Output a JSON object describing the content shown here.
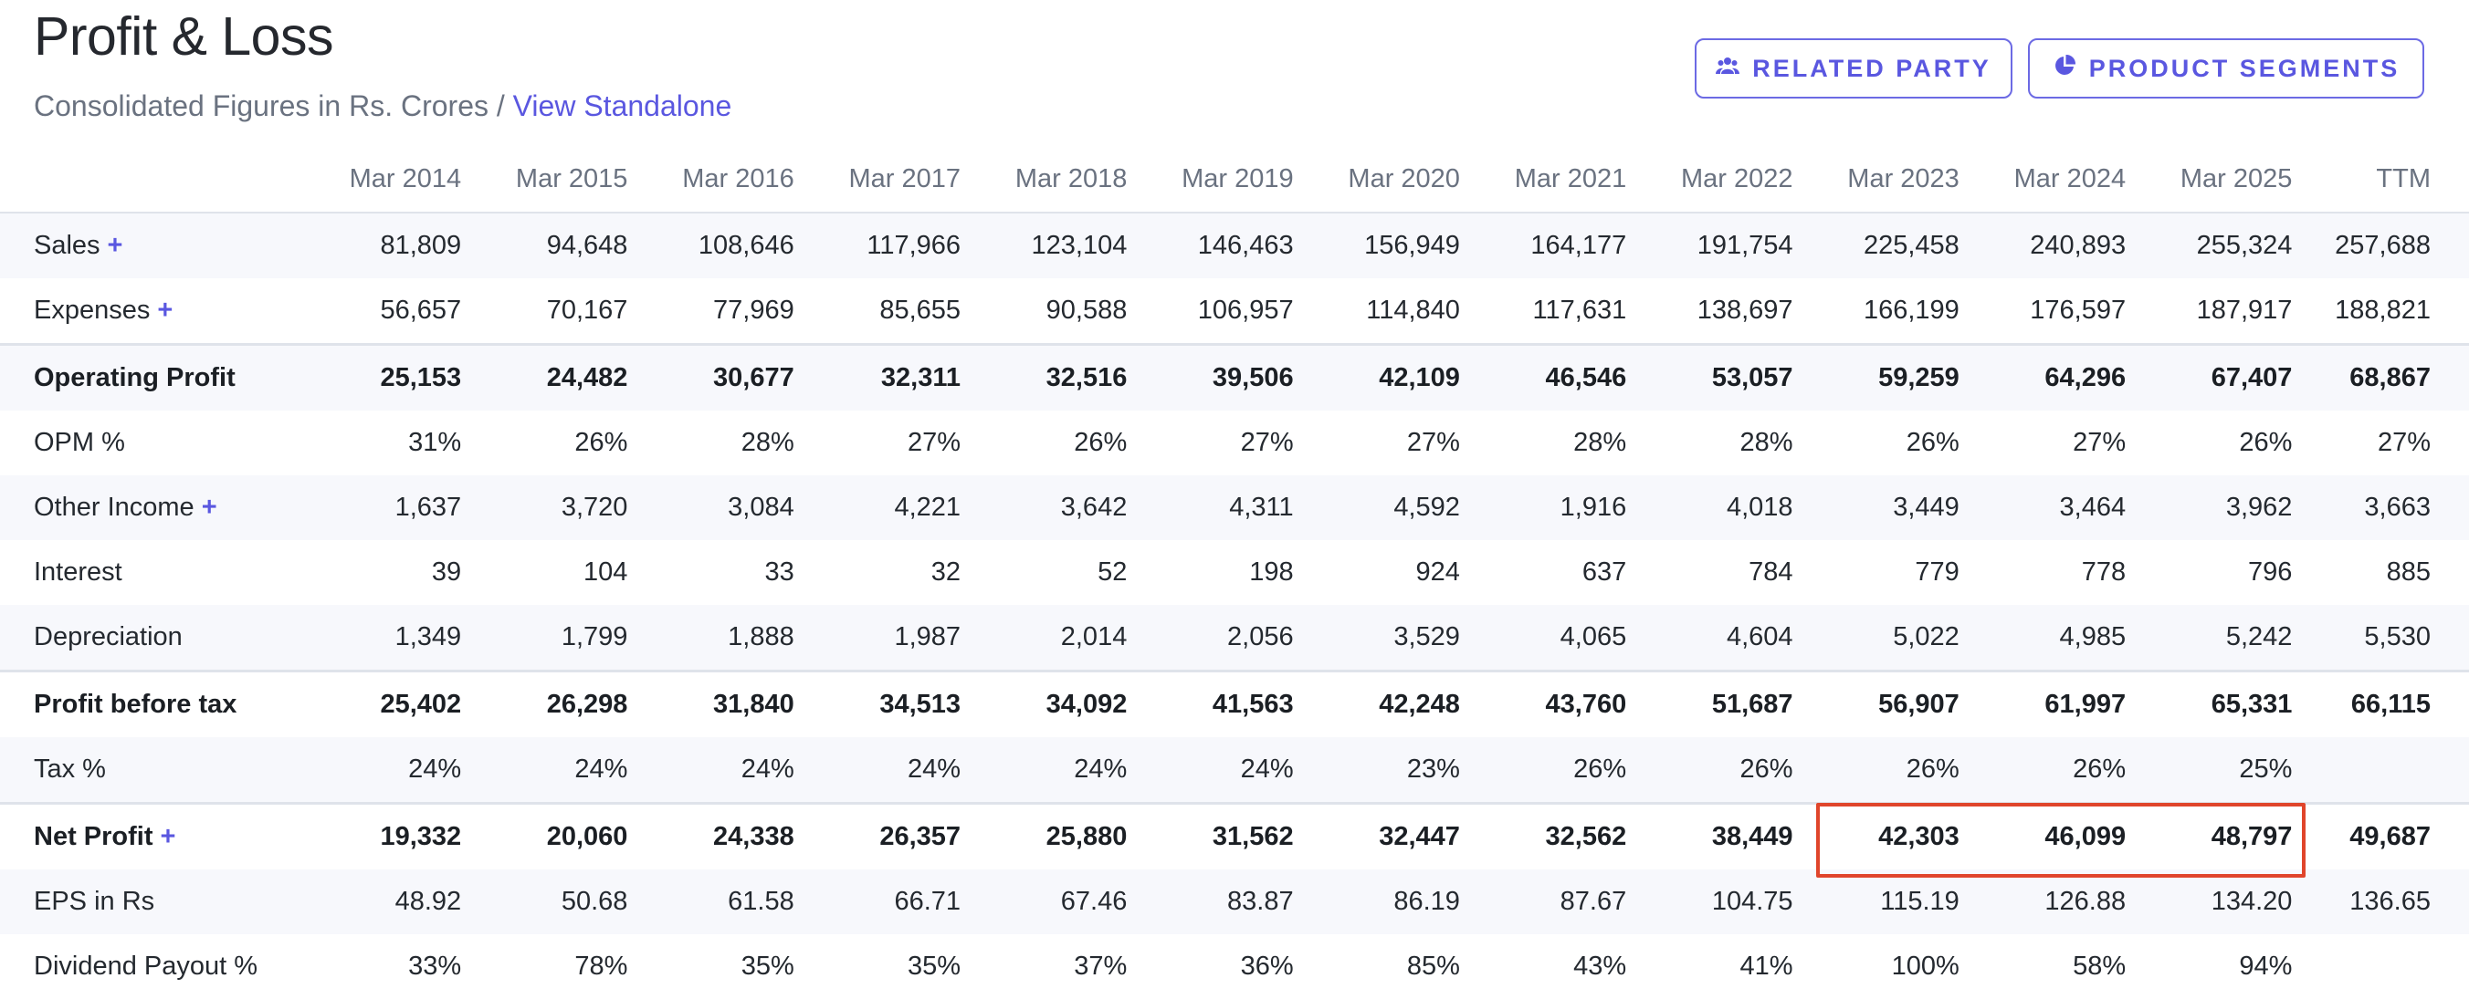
{
  "header": {
    "title": "Profit & Loss",
    "subtitle_prefix": "Consolidated Figures in Rs. Crores / ",
    "view_link": "View Standalone"
  },
  "buttons": {
    "related_party": {
      "label": "RELATED PARTY",
      "icon": "users-icon"
    },
    "product_segments": {
      "label": "PRODUCT SEGMENTS",
      "icon": "pie-chart-icon"
    }
  },
  "colors": {
    "accent": "#5a57e0",
    "highlight": "#e0452b",
    "stripe": "#f7f8fc"
  },
  "table": {
    "columns": [
      "Mar 2014",
      "Mar 2015",
      "Mar 2016",
      "Mar 2017",
      "Mar 2018",
      "Mar 2019",
      "Mar 2020",
      "Mar 2021",
      "Mar 2022",
      "Mar 2023",
      "Mar 2024",
      "Mar 2025",
      "TTM"
    ],
    "rows": [
      {
        "label": "Sales",
        "expandable": true,
        "bold": false,
        "values": [
          "81,809",
          "94,648",
          "108,646",
          "117,966",
          "123,104",
          "146,463",
          "156,949",
          "164,177",
          "191,754",
          "225,458",
          "240,893",
          "255,324",
          "257,688"
        ]
      },
      {
        "label": "Expenses",
        "expandable": true,
        "bold": false,
        "values": [
          "56,657",
          "70,167",
          "77,969",
          "85,655",
          "90,588",
          "106,957",
          "114,840",
          "117,631",
          "138,697",
          "166,199",
          "176,597",
          "187,917",
          "188,821"
        ]
      },
      {
        "label": "Operating Profit",
        "expandable": false,
        "bold": true,
        "values": [
          "25,153",
          "24,482",
          "30,677",
          "32,311",
          "32,516",
          "39,506",
          "42,109",
          "46,546",
          "53,057",
          "59,259",
          "64,296",
          "67,407",
          "68,867"
        ]
      },
      {
        "label": "OPM %",
        "expandable": false,
        "bold": false,
        "values": [
          "31%",
          "26%",
          "28%",
          "27%",
          "26%",
          "27%",
          "27%",
          "28%",
          "28%",
          "26%",
          "27%",
          "26%",
          "27%"
        ]
      },
      {
        "label": "Other Income",
        "expandable": true,
        "bold": false,
        "values": [
          "1,637",
          "3,720",
          "3,084",
          "4,221",
          "3,642",
          "4,311",
          "4,592",
          "1,916",
          "4,018",
          "3,449",
          "3,464",
          "3,962",
          "3,663"
        ]
      },
      {
        "label": "Interest",
        "expandable": false,
        "bold": false,
        "values": [
          "39",
          "104",
          "33",
          "32",
          "52",
          "198",
          "924",
          "637",
          "784",
          "779",
          "778",
          "796",
          "885"
        ]
      },
      {
        "label": "Depreciation",
        "expandable": false,
        "bold": false,
        "values": [
          "1,349",
          "1,799",
          "1,888",
          "1,987",
          "2,014",
          "2,056",
          "3,529",
          "4,065",
          "4,604",
          "5,022",
          "4,985",
          "5,242",
          "5,530"
        ]
      },
      {
        "label": "Profit before tax",
        "expandable": false,
        "bold": true,
        "values": [
          "25,402",
          "26,298",
          "31,840",
          "34,513",
          "34,092",
          "41,563",
          "42,248",
          "43,760",
          "51,687",
          "56,907",
          "61,997",
          "65,331",
          "66,115"
        ]
      },
      {
        "label": "Tax %",
        "expandable": false,
        "bold": false,
        "values": [
          "24%",
          "24%",
          "24%",
          "24%",
          "24%",
          "24%",
          "23%",
          "26%",
          "26%",
          "26%",
          "26%",
          "25%",
          ""
        ]
      },
      {
        "label": "Net Profit",
        "expandable": true,
        "bold": true,
        "values": [
          "19,332",
          "20,060",
          "24,338",
          "26,357",
          "25,880",
          "31,562",
          "32,447",
          "32,562",
          "38,449",
          "42,303",
          "46,099",
          "48,797",
          "49,687"
        ]
      },
      {
        "label": "EPS in Rs",
        "expandable": false,
        "bold": false,
        "values": [
          "48.92",
          "50.68",
          "61.58",
          "66.71",
          "67.46",
          "83.87",
          "86.19",
          "87.67",
          "104.75",
          "115.19",
          "126.88",
          "134.20",
          "136.65"
        ]
      },
      {
        "label": "Dividend Payout %",
        "expandable": false,
        "bold": false,
        "values": [
          "33%",
          "78%",
          "35%",
          "35%",
          "37%",
          "36%",
          "85%",
          "43%",
          "41%",
          "100%",
          "58%",
          "94%",
          ""
        ]
      }
    ]
  }
}
